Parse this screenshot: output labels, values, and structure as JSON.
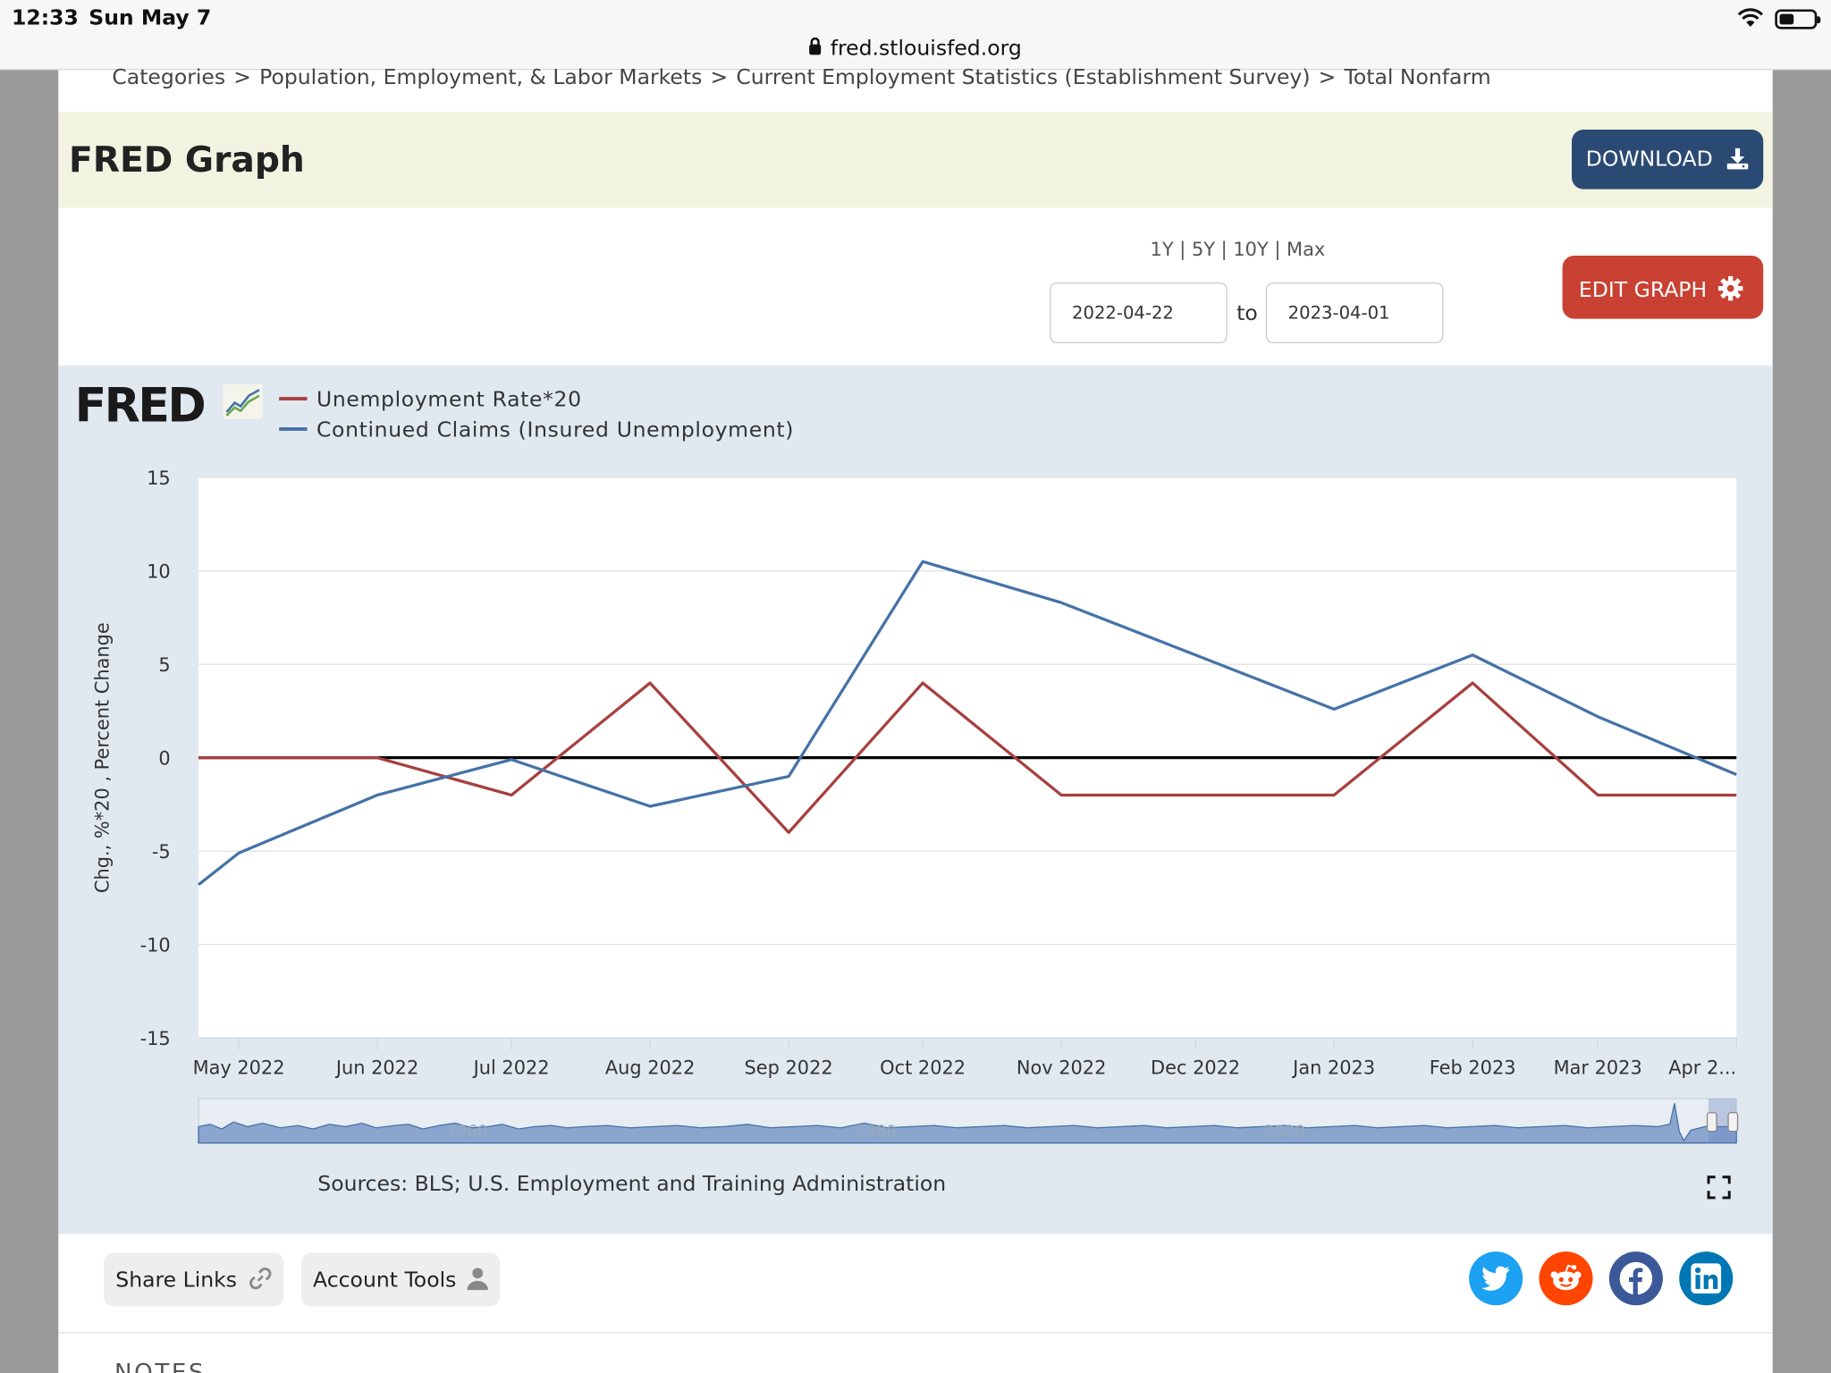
{
  "status_bar": {
    "time": "12:33",
    "date": "Sun May 7",
    "url": "fred.stlouisfed.org"
  },
  "breadcrumb": [
    "Categories",
    ">",
    "Population, Employment, & Labor Markets",
    ">",
    "Current Employment Statistics (Establishment Survey)",
    ">",
    "Total Nonfarm"
  ],
  "header": {
    "title": "FRED Graph",
    "download_label": "DOWNLOAD"
  },
  "controls": {
    "ranges": [
      "1Y",
      "5Y",
      "10Y",
      "Max"
    ],
    "range_sep": "|",
    "start_date": "2022-04-22",
    "to_label": "to",
    "end_date": "2023-04-01",
    "edit_label": "EDIT GRAPH"
  },
  "logo_text": "FRED",
  "legend": [
    "Unemployment Rate*20",
    "Continued Claims (Insured Unemployment)"
  ],
  "sources": "Sources: BLS; U.S. Employment and Training Administration",
  "footer": {
    "share_label": "Share Links",
    "account_label": "Account Tools",
    "notes_label": "NOTES"
  },
  "colors": {
    "red_series": "#a7403f",
    "blue_series": "#4572a7",
    "download_btn": "#2a4a74",
    "edit_btn": "#c94133"
  },
  "chart_data": {
    "type": "line",
    "ylabel": "Chg., %*20 , Percent Change",
    "xlabel": "",
    "ylim": [
      -15,
      15
    ],
    "yticks": [
      15,
      10,
      5,
      0,
      -5,
      -10,
      -15
    ],
    "xticks": [
      "May 2022",
      "Jun 2022",
      "Jul 2022",
      "Aug 2022",
      "Sep 2022",
      "Oct 2022",
      "Nov 2022",
      "Dec 2022",
      "Jan 2023",
      "Feb 2023",
      "Mar 2023",
      "Apr 2..."
    ],
    "xtick_dates": [
      "2022-05-01",
      "2022-06-01",
      "2022-07-01",
      "2022-08-01",
      "2022-09-01",
      "2022-10-01",
      "2022-11-01",
      "2022-12-01",
      "2023-01-01",
      "2023-02-01",
      "2023-03-01",
      "2023-04-01"
    ],
    "x_range": [
      "2022-04-22",
      "2023-04-01"
    ],
    "zero_line": true,
    "grid": true,
    "series": [
      {
        "name": "Unemployment Rate*20",
        "color": "#a7403f",
        "x": [
          "2022-04-22",
          "2022-06-01",
          "2022-07-01",
          "2022-08-01",
          "2022-09-01",
          "2022-10-01",
          "2022-11-01",
          "2022-12-01",
          "2023-01-01",
          "2023-02-01",
          "2023-03-01",
          "2023-04-01"
        ],
        "y": [
          0,
          0,
          -2,
          4,
          -4,
          4,
          -2,
          -2,
          -2,
          4,
          -2,
          -2
        ]
      },
      {
        "name": "Continued Claims (Insured Unemployment)",
        "color": "#4572a7",
        "x": [
          "2022-04-22",
          "2022-05-01",
          "2022-06-01",
          "2022-07-01",
          "2022-08-01",
          "2022-09-01",
          "2022-10-01",
          "2022-11-01",
          "2022-12-01",
          "2023-01-01",
          "2023-02-01",
          "2023-03-01",
          "2023-04-01"
        ],
        "y": [
          -6.8,
          -5.1,
          -2.0,
          -0.1,
          -2.6,
          -1.0,
          10.5,
          8.3,
          5.5,
          2.6,
          5.5,
          2.2,
          -0.9
        ]
      }
    ],
    "navigator_labels": [
      "1960",
      "1980",
      "2000"
    ]
  }
}
